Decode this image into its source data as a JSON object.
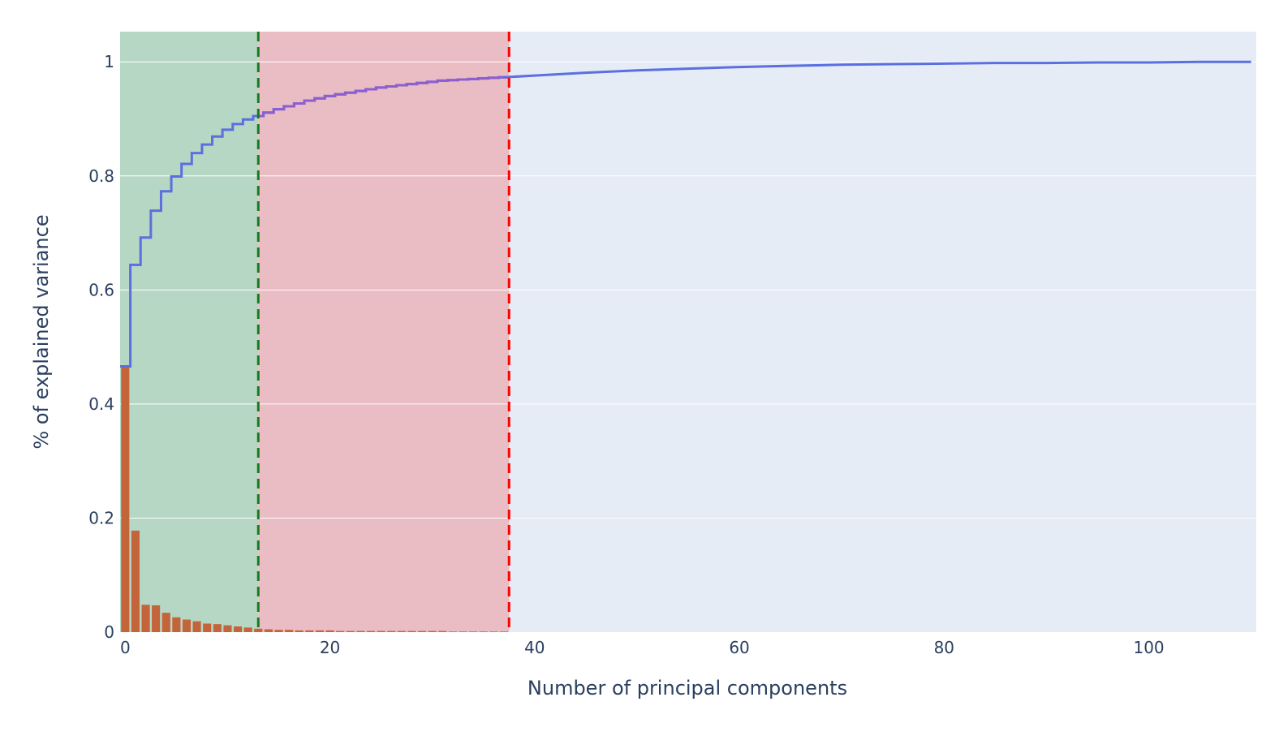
{
  "chart_data": {
    "type": "bar",
    "xlabel": "Number of principal components",
    "ylabel": "% of explained variance",
    "xlim": [
      -0.5,
      110.5
    ],
    "ylim": [
      0,
      1.053
    ],
    "x_ticks": [
      0,
      20,
      40,
      60,
      80,
      100
    ],
    "y_ticks": [
      0,
      0.2,
      0.4,
      0.6,
      0.8,
      1
    ],
    "x_tick_labels": [
      "0",
      "20",
      "40",
      "60",
      "80",
      "100"
    ],
    "y_tick_labels": [
      "0",
      "0.2",
      "0.4",
      "0.6",
      "0.8",
      "1"
    ],
    "grid": true,
    "legend": "none",
    "regions": [
      {
        "x0": -0.5,
        "x1": 13,
        "color": "#b6d7c3"
      },
      {
        "x0": 13,
        "x1": 37.5,
        "color": "#eabcc4"
      }
    ],
    "threshold_lines": [
      {
        "x": 13,
        "color": "#1a7a1a"
      },
      {
        "x": 37.5,
        "color": "#ff0000"
      }
    ],
    "bar_color": "#c4643a",
    "line_color_primary": "#5b6fe0",
    "line_color_overlay": "#8b5fd0",
    "series": [
      {
        "type": "bar",
        "values": [
          0.466,
          0.178,
          0.048,
          0.047,
          0.034,
          0.026,
          0.022,
          0.019,
          0.015,
          0.014,
          0.012,
          0.01,
          0.008,
          0.006,
          0.005,
          0.004,
          0.004,
          0.003,
          0.003,
          0.003,
          0.003,
          0.002,
          0.002,
          0.002,
          0.002,
          0.002,
          0.002,
          0.002,
          0.002,
          0.002,
          0.002,
          0.002,
          0.001,
          0.001,
          0.001,
          0.001,
          0.001,
          0.001
        ]
      },
      {
        "type": "step-line",
        "cumulative": [
          0.466,
          0.644,
          0.692,
          0.739,
          0.773,
          0.799,
          0.821,
          0.84,
          0.855,
          0.869,
          0.881,
          0.891,
          0.899,
          0.905,
          0.911,
          0.917,
          0.922,
          0.927,
          0.932,
          0.936,
          0.94,
          0.943,
          0.946,
          0.949,
          0.952,
          0.955,
          0.957,
          0.959,
          0.961,
          0.963,
          0.965,
          0.967,
          0.968,
          0.969,
          0.97,
          0.971,
          0.972,
          0.973
        ]
      },
      {
        "type": "line",
        "x": [
          37,
          40,
          45,
          50,
          55,
          60,
          65,
          70,
          75,
          80,
          85,
          90,
          95,
          100,
          105,
          110
        ],
        "y": [
          0.973,
          0.976,
          0.981,
          0.985,
          0.988,
          0.991,
          0.993,
          0.995,
          0.996,
          0.997,
          0.998,
          0.998,
          0.999,
          0.999,
          1.0,
          1.0
        ]
      }
    ]
  }
}
